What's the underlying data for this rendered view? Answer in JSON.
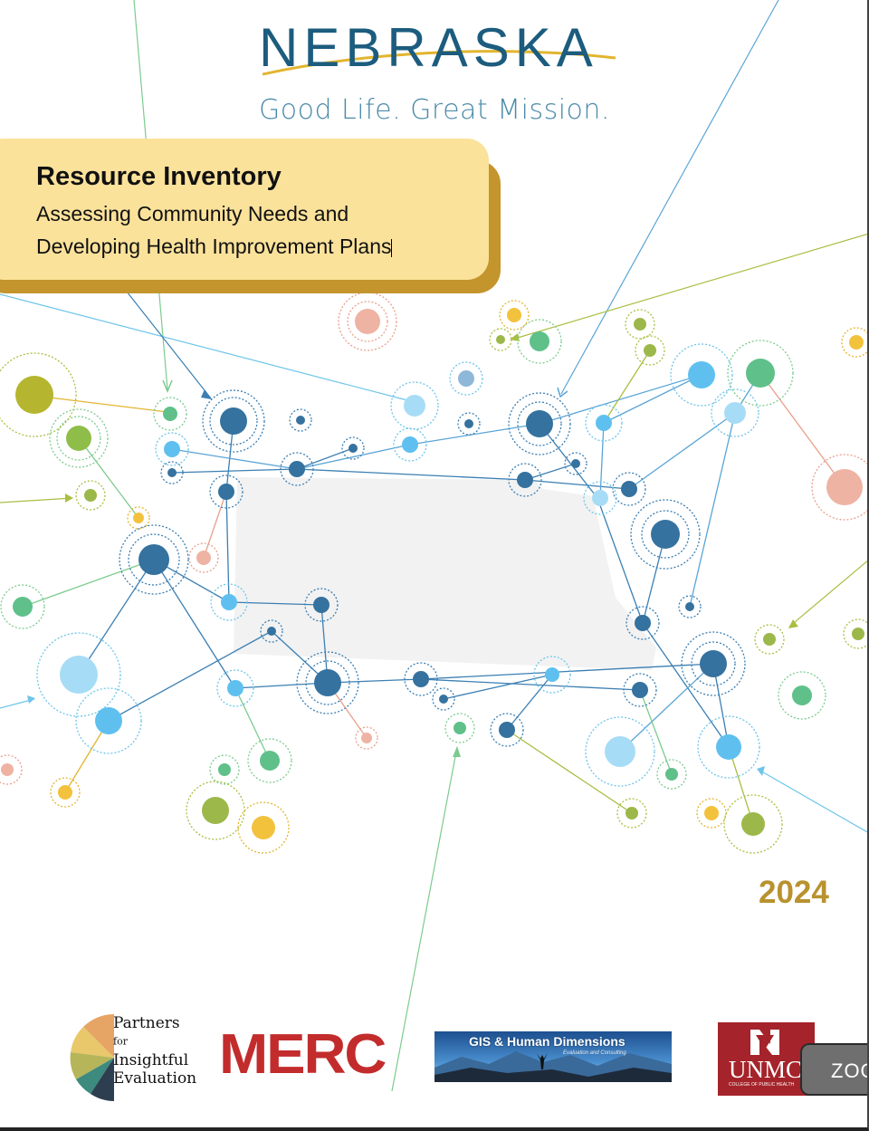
{
  "brand": {
    "name": "NEBRASKA",
    "tagline": "Good Life. Great Mission."
  },
  "title_card": {
    "heading": "Resource Inventory",
    "subtitle_line1": "Assessing Community Needs and",
    "subtitle_line2": "Developing Health Improvement Plans"
  },
  "year": "2024",
  "logos": {
    "partners": {
      "line1": "Partners",
      "line1_suffix": "for",
      "line2": "Insightful",
      "line3": "Evaluation"
    },
    "merc": "MERC",
    "gis": {
      "title": "GIS & Human Dimensions",
      "subtitle": "Evaluation and Consulting"
    },
    "unmc": {
      "name": "UNMC",
      "subtitle": "COLLEGE OF PUBLIC HEALTH"
    }
  },
  "zoom_button": {
    "label": "ZOO"
  },
  "colors": {
    "navy": "#1c5c7e",
    "gold": "#c4952c",
    "card": "#fbe29b",
    "year": "#b8922f",
    "merc_red": "#c32c2c",
    "unmc_red": "#a5232a"
  }
}
